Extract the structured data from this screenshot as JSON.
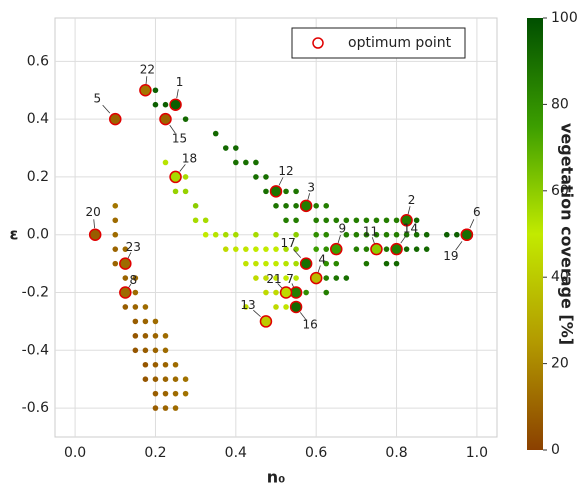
{
  "chart_data": {
    "type": "scatter",
    "xlabel": "n₀",
    "ylabel": "ε",
    "xlim": [
      -0.05,
      1.05
    ],
    "xticks": [
      {
        "value": 0,
        "label": "0.0"
      },
      0.2,
      0.4,
      0.6,
      0.8,
      {
        "value": 1,
        "label": "1.0"
      }
    ],
    "ylim": [
      -0.7,
      0.75
    ],
    "yticks": [
      -0.6,
      -0.4,
      -0.2,
      {
        "value": 0,
        "label": "0.0"
      },
      0.2,
      0.4,
      0.6
    ],
    "grid": true,
    "colormap": [
      "#8b4000",
      "#b39a00",
      "#c2ea00",
      "#3c9e00",
      "#004f00"
    ],
    "colorbar": {
      "label": "vegetation coverage [%]",
      "lim": [
        0,
        100
      ],
      "ticks": [
        0,
        20,
        40,
        60,
        80,
        100
      ]
    },
    "rows": [
      {
        "y": 0.1,
        "x": [
          0.1
        ],
        "coverage": [
          15
        ]
      },
      {
        "y": 0.05,
        "x": [
          0.1
        ],
        "coverage": [
          12
        ]
      },
      {
        "y": 0.0,
        "x": [
          0.1
        ],
        "coverage": [
          12
        ]
      },
      {
        "y": -0.05,
        "x": [
          0.1,
          0.125
        ],
        "coverage": [
          10,
          12
        ]
      },
      {
        "y": -0.1,
        "x": [
          0.1
        ],
        "coverage": [
          10
        ]
      },
      {
        "y": -0.15,
        "x": [
          0.125,
          0.15
        ],
        "coverage": [
          10,
          12
        ]
      },
      {
        "y": -0.2,
        "x": [
          0.15
        ],
        "coverage": [
          12
        ]
      },
      {
        "y": -0.25,
        "x": [
          0.125,
          0.15,
          0.175
        ],
        "coverage": [
          8,
          10,
          12
        ]
      },
      {
        "y": -0.3,
        "x": [
          0.15,
          0.175,
          0.2
        ],
        "coverage": [
          8,
          10,
          12
        ]
      },
      {
        "y": -0.35,
        "x": [
          0.15,
          0.175,
          0.2,
          0.225
        ],
        "coverage": [
          6,
          8,
          10,
          12
        ]
      },
      {
        "y": -0.4,
        "x": [
          0.15,
          0.175,
          0.2,
          0.225
        ],
        "coverage": [
          6,
          8,
          10,
          12
        ]
      },
      {
        "y": -0.45,
        "x": [
          0.175,
          0.2,
          0.225,
          0.25
        ],
        "coverage": [
          6,
          8,
          10,
          12
        ]
      },
      {
        "y": -0.5,
        "x": [
          0.175,
          0.2,
          0.225,
          0.25,
          0.275
        ],
        "coverage": [
          6,
          8,
          10,
          12,
          14
        ]
      },
      {
        "y": -0.55,
        "x": [
          0.2,
          0.225,
          0.25,
          0.275
        ],
        "coverage": [
          8,
          10,
          12,
          14
        ]
      },
      {
        "y": -0.6,
        "x": [
          0.2,
          0.225,
          0.25
        ],
        "coverage": [
          8,
          10,
          12
        ]
      },
      {
        "y": 0.5,
        "x": [
          0.2
        ],
        "coverage": [
          95
        ]
      },
      {
        "y": 0.45,
        "x": [
          0.2,
          0.225
        ],
        "coverage": [
          95,
          95
        ]
      },
      {
        "y": 0.4,
        "x": [
          0.275
        ],
        "coverage": [
          92
        ]
      },
      {
        "y": 0.35,
        "x": [
          0.35
        ],
        "coverage": [
          92
        ]
      },
      {
        "y": 0.3,
        "x": [
          0.375,
          0.4
        ],
        "coverage": [
          92,
          92
        ]
      },
      {
        "y": 0.25,
        "x": [
          0.225,
          0.4,
          0.425,
          0.45
        ],
        "coverage": [
          52,
          90,
          90,
          90
        ]
      },
      {
        "y": 0.2,
        "x": [
          0.275,
          0.45,
          0.475
        ],
        "coverage": [
          55,
          90,
          90
        ]
      },
      {
        "y": 0.15,
        "x": [
          0.25,
          0.275,
          0.475,
          0.525,
          0.55
        ],
        "coverage": [
          58,
          58,
          90,
          88,
          88
        ]
      },
      {
        "y": 0.1,
        "x": [
          0.3,
          0.5,
          0.525,
          0.55,
          0.6,
          0.625
        ],
        "coverage": [
          60,
          88,
          88,
          88,
          85,
          85
        ]
      },
      {
        "y": 0.05,
        "x": [
          0.3,
          0.325,
          0.525,
          0.55,
          0.6,
          0.625,
          0.65,
          0.675,
          0.7,
          0.725,
          0.75,
          0.775,
          0.8,
          0.85
        ],
        "coverage": [
          55,
          55,
          85,
          85,
          85,
          85,
          85,
          85,
          85,
          85,
          85,
          85,
          85,
          92
        ]
      },
      {
        "y": 0.0,
        "x": [
          0.325,
          0.35,
          0.375,
          0.4,
          0.45,
          0.5,
          0.55,
          0.6,
          0.625,
          0.675,
          0.7,
          0.725,
          0.75,
          0.775,
          0.8,
          0.825,
          0.85,
          0.875,
          0.925,
          0.95
        ],
        "coverage": [
          50,
          52,
          55,
          55,
          55,
          55,
          60,
          80,
          82,
          85,
          85,
          85,
          85,
          85,
          85,
          88,
          90,
          92,
          95,
          95
        ]
      },
      {
        "y": -0.05,
        "x": [
          0.375,
          0.4,
          0.425,
          0.45,
          0.475,
          0.5,
          0.525,
          0.55,
          0.6,
          0.625,
          0.7,
          0.725,
          0.775,
          0.825,
          0.85,
          0.875
        ],
        "coverage": [
          45,
          48,
          48,
          50,
          50,
          50,
          55,
          60,
          75,
          80,
          85,
          85,
          88,
          92,
          92,
          92
        ]
      },
      {
        "y": -0.1,
        "x": [
          0.425,
          0.45,
          0.475,
          0.5,
          0.525,
          0.55,
          0.625,
          0.65,
          0.725,
          0.775,
          0.8
        ],
        "coverage": [
          48,
          48,
          50,
          50,
          52,
          55,
          80,
          82,
          88,
          92,
          92
        ]
      },
      {
        "y": -0.15,
        "x": [
          0.45,
          0.475,
          0.5,
          0.525,
          0.55,
          0.625,
          0.65,
          0.675
        ],
        "coverage": [
          45,
          45,
          48,
          50,
          52,
          85,
          88,
          90
        ]
      },
      {
        "y": -0.2,
        "x": [
          0.475,
          0.5,
          0.575,
          0.625
        ],
        "coverage": [
          45,
          45,
          80,
          85
        ]
      },
      {
        "y": -0.25,
        "x": [
          0.425,
          0.5,
          0.525
        ],
        "coverage": [
          45,
          45,
          48
        ]
      }
    ],
    "optimum": {
      "name": "optimum point",
      "color": "#e00000",
      "labels": [
        "1",
        "2",
        "3",
        "4",
        "5",
        "6",
        "7",
        "8",
        "9",
        "11",
        "12",
        "13",
        "14",
        "15",
        "16",
        "17",
        "18",
        "19",
        "20",
        "21",
        "22",
        "23"
      ],
      "x": [
        0.25,
        0.825,
        0.575,
        0.6,
        0.1,
        0.975,
        0.55,
        0.125,
        0.65,
        0.75,
        0.5,
        0.475,
        0.8,
        0.225,
        0.55,
        0.575,
        0.25,
        0.975,
        0.05,
        0.525,
        0.175,
        0.125
      ],
      "y": [
        0.45,
        0.05,
        0.1,
        -0.15,
        0.4,
        0.0,
        -0.2,
        -0.2,
        -0.05,
        -0.05,
        0.15,
        -0.3,
        -0.05,
        0.4,
        -0.25,
        -0.1,
        0.2,
        0.0,
        0.0,
        -0.2,
        0.5,
        -0.1
      ],
      "coverage": [
        95,
        85,
        85,
        35,
        10,
        90,
        85,
        12,
        75,
        60,
        88,
        40,
        85,
        10,
        92,
        90,
        55,
        90,
        8,
        45,
        15,
        12
      ]
    },
    "legend": "upper right"
  }
}
